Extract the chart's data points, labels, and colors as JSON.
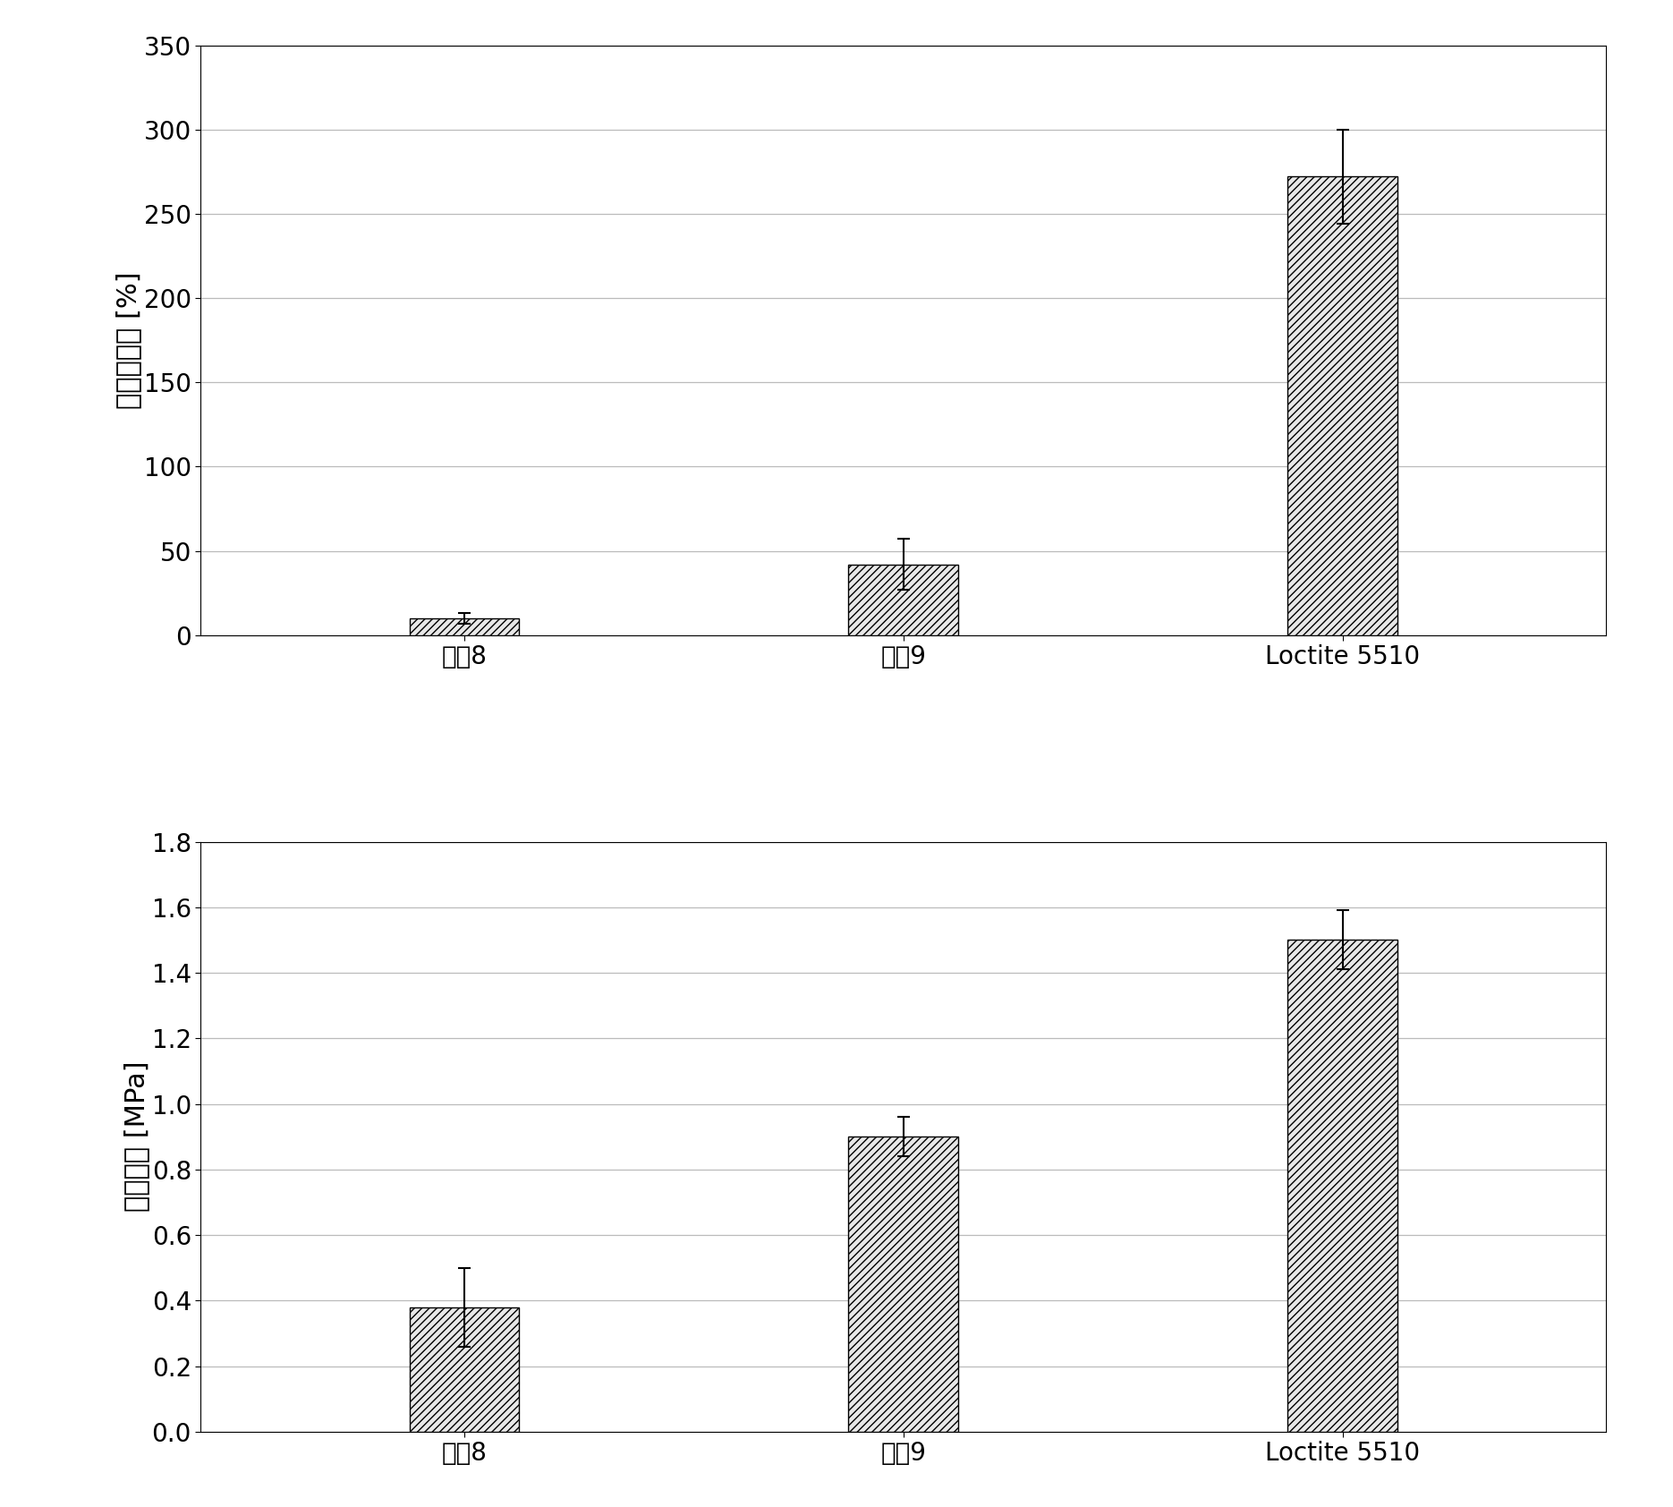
{
  "top_chart": {
    "categories": [
      "制劉8",
      "制劙9",
      "Loctite 5510"
    ],
    "values": [
      10,
      42,
      272
    ],
    "errors": [
      3,
      15,
      28
    ],
    "ylabel": "断裂伸长率 [%]",
    "ylim": [
      0,
      350
    ],
    "yticks": [
      0,
      50,
      100,
      150,
      200,
      250,
      300,
      350
    ]
  },
  "bottom_chart": {
    "categories": [
      "制劉8",
      "制劙9",
      "Loctite 5510"
    ],
    "values": [
      0.38,
      0.9,
      1.5
    ],
    "errors": [
      0.12,
      0.06,
      0.09
    ],
    "ylabel": "抗张强度 [MPa]",
    "ylim": [
      0,
      1.8
    ],
    "yticks": [
      0,
      0.2,
      0.4,
      0.6,
      0.8,
      1.0,
      1.2,
      1.4,
      1.6,
      1.8
    ]
  },
  "bar_color": "#e8e8e8",
  "hatch_pattern": "////",
  "edge_color": "#000000",
  "background_color": "#ffffff",
  "grid_color": "#bbbbbb",
  "bar_width": 0.25,
  "label_fontsize": 22,
  "tick_fontsize": 20,
  "x_label_fontsize": 20,
  "figure_width": 18.7,
  "figure_height": 16.84
}
